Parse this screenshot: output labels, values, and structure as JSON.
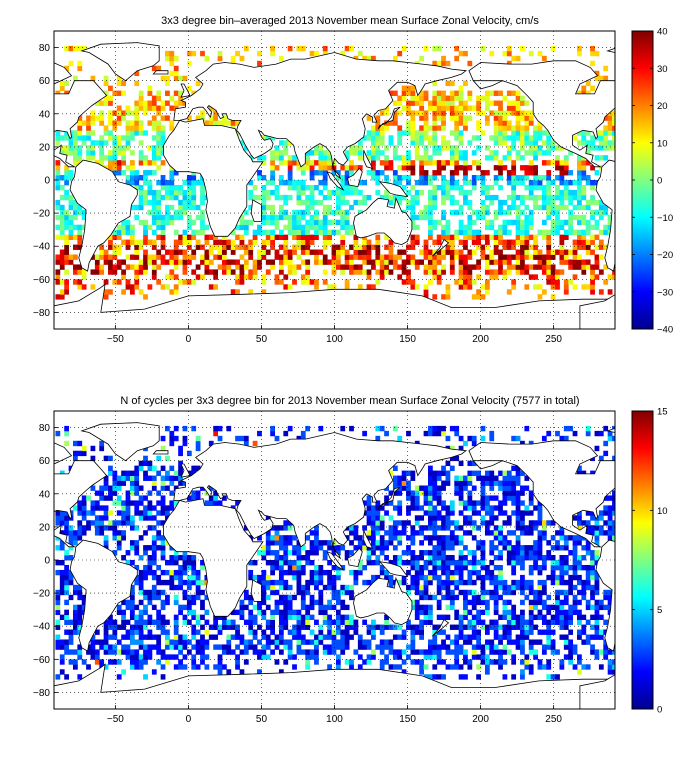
{
  "figure": {
    "panels": [
      {
        "title": "3x3 degree bin–averaged 2013 November mean Surface Zonal Velocity, cm/s",
        "colorbar": {
          "min": -40,
          "max": 40,
          "ticks": [
            "40",
            "30",
            "20",
            "10",
            "0",
            "−10",
            "−20",
            "−30",
            "−40"
          ]
        }
      },
      {
        "title": "N of cycles per 3x3 degree bin for 2013 November mean Surface Zonal Velocity (7577 in total)",
        "colorbar": {
          "min": 0,
          "max": 15,
          "ticks": [
            "15",
            "10",
            "5",
            "0"
          ]
        }
      }
    ],
    "xticks": [
      "−50",
      "0",
      "50",
      "100",
      "150",
      "200",
      "250"
    ],
    "yticks": [
      "80",
      "60",
      "40",
      "20",
      "0",
      "−20",
      "−40",
      "−60",
      "−80"
    ]
  },
  "chart_data": [
    {
      "type": "heatmap",
      "title": "3x3 degree bin–averaged 2013 November mean Surface Zonal Velocity, cm/s",
      "xlabel": "",
      "ylabel": "",
      "xlim": [
        -92,
        292
      ],
      "ylim": [
        -90,
        90
      ],
      "xticks": [
        -50,
        0,
        50,
        100,
        150,
        200,
        250
      ],
      "yticks": [
        -80,
        -60,
        -40,
        -20,
        0,
        20,
        40,
        60,
        80
      ],
      "colorbar": {
        "min": -40,
        "max": 40,
        "colormap": "jet"
      },
      "bin_size_deg": 3,
      "grid": true
    },
    {
      "type": "heatmap",
      "title": "N of cycles per 3x3 degree bin for 2013 November mean Surface Zonal Velocity (7577 in total)",
      "xlabel": "",
      "ylabel": "",
      "xlim": [
        -92,
        292
      ],
      "ylim": [
        -90,
        90
      ],
      "xticks": [
        -50,
        0,
        50,
        100,
        150,
        200,
        250
      ],
      "yticks": [
        -80,
        -60,
        -40,
        -20,
        0,
        20,
        40,
        60,
        80
      ],
      "colorbar": {
        "min": 0,
        "max": 15,
        "colormap": "jet"
      },
      "total_cycles": 7577,
      "bin_size_deg": 3,
      "grid": true
    }
  ]
}
